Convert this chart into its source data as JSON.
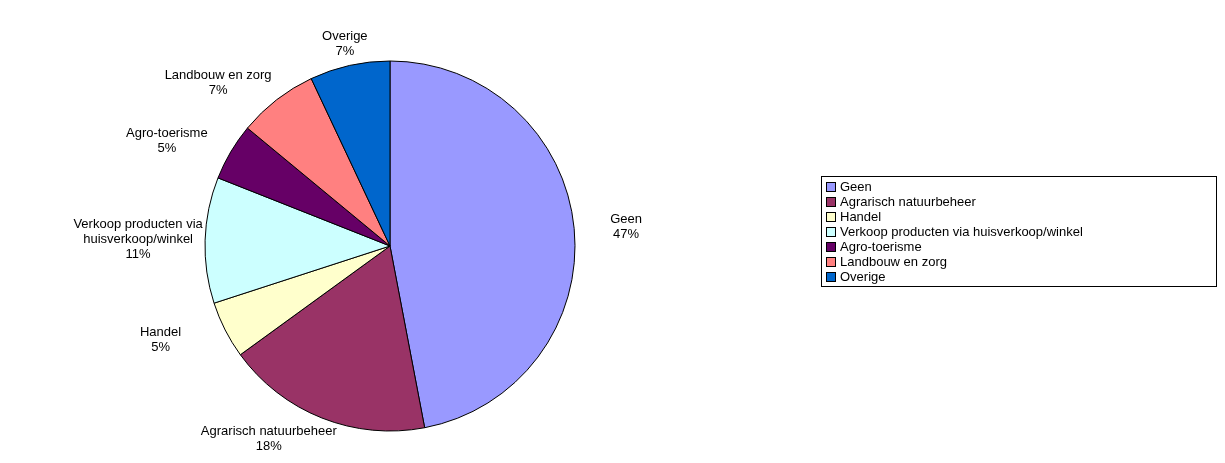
{
  "chart_data": {
    "type": "pie",
    "categories": [
      "Geen",
      "Agrarisch natuurbeheer",
      "Handel",
      "Verkoop producten via huisverkoop/winkel",
      "Agro-toerisme",
      "Landbouw en zorg",
      "Overige"
    ],
    "values": [
      47,
      18,
      5,
      11,
      5,
      7,
      7
    ],
    "value_labels": [
      "47%",
      "18%",
      "5%",
      "11%",
      "5%",
      "7%",
      "7%"
    ],
    "colors": [
      "#9999ff",
      "#993366",
      "#ffffcc",
      "#ccffff",
      "#660066",
      "#ff8080",
      "#0066cc"
    ],
    "legend": "right"
  }
}
